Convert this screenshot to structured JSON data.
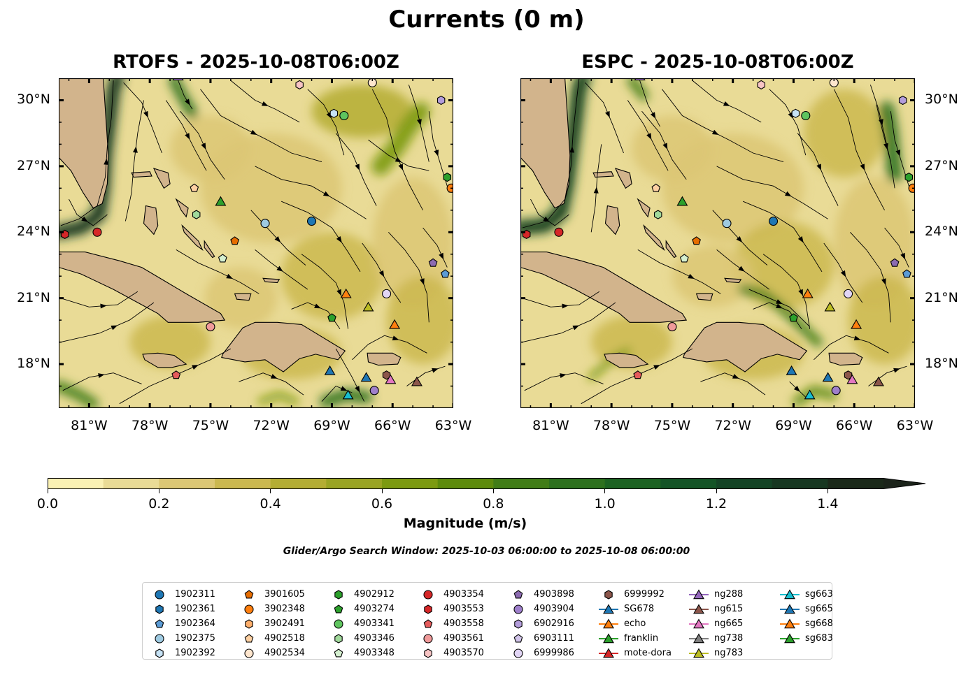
{
  "figure": {
    "title": "Currents (0 m)",
    "window_note": "Glider/Argo Search Window: 2025-10-03 06:00:00 to 2025-10-08 06:00:00"
  },
  "panels": [
    {
      "id": "left",
      "title": "RTOFS - 2025-10-08T06:00Z"
    },
    {
      "id": "right",
      "title": "ESPC - 2025-10-08T06:00Z"
    }
  ],
  "map_extent": {
    "lon": [
      -82.5,
      -63.0
    ],
    "lat": [
      16.0,
      31.0
    ]
  },
  "axes": {
    "x_ticks": [
      {
        "value": -81,
        "label": "81°W"
      },
      {
        "value": -78,
        "label": "78°W"
      },
      {
        "value": -75,
        "label": "75°W"
      },
      {
        "value": -72,
        "label": "72°W"
      },
      {
        "value": -69,
        "label": "69°W"
      },
      {
        "value": -66,
        "label": "66°W"
      },
      {
        "value": -63,
        "label": "63°W"
      }
    ],
    "y_ticks": [
      {
        "value": 30,
        "label": "30°N"
      },
      {
        "value": 27,
        "label": "27°N"
      },
      {
        "value": 24,
        "label": "24°N"
      },
      {
        "value": 21,
        "label": "21°N"
      },
      {
        "value": 18,
        "label": "18°N"
      }
    ]
  },
  "colorbar": {
    "label": "Magnitude (m/s)",
    "range": [
      0.0,
      1.5
    ],
    "extend": "max",
    "ticks": [
      "0.0",
      "0.2",
      "0.4",
      "0.6",
      "0.8",
      "1.0",
      "1.2",
      "1.4"
    ],
    "colors": [
      "#faf1b4",
      "#e9db96",
      "#dcc774",
      "#cbb84f",
      "#b4ad33",
      "#9aa423",
      "#7c9a10",
      "#5d8b0c",
      "#417d17",
      "#2d711e",
      "#1c6322",
      "#145426",
      "#144425",
      "#173721",
      "#1b291a",
      "#1b231a"
    ],
    "land_color": "#d2b48c"
  },
  "legend": {
    "columns": [
      [
        {
          "label": "1902311",
          "marker": "circle",
          "color": "#1f77b4"
        },
        {
          "label": "1902361",
          "marker": "hexagon",
          "color": "#1f77b4"
        },
        {
          "label": "1902364",
          "marker": "pentagon",
          "color": "#5b9bd5"
        },
        {
          "label": "1902375",
          "marker": "circle",
          "color": "#9ecae1"
        },
        {
          "label": "1902392",
          "marker": "hexagon",
          "color": "#c6e2f5"
        }
      ],
      [
        {
          "label": "3901605",
          "marker": "pentagon",
          "color": "#e66d00"
        },
        {
          "label": "3902348",
          "marker": "circle",
          "color": "#ff7f0e"
        },
        {
          "label": "3902491",
          "marker": "hexagon",
          "color": "#fdae6b"
        },
        {
          "label": "4902518",
          "marker": "pentagon",
          "color": "#fdd0a2"
        },
        {
          "label": "4902534",
          "marker": "circle",
          "color": "#fee6ce"
        }
      ],
      [
        {
          "label": "4902912",
          "marker": "hexagon",
          "color": "#2ca02c"
        },
        {
          "label": "4903274",
          "marker": "pentagon",
          "color": "#2ca02c"
        },
        {
          "label": "4903341",
          "marker": "circle",
          "color": "#5fc45f"
        },
        {
          "label": "4903346",
          "marker": "hexagon",
          "color": "#a1d99b"
        },
        {
          "label": "4903348",
          "marker": "pentagon",
          "color": "#d5f0d0"
        }
      ],
      [
        {
          "label": "4903354",
          "marker": "circle",
          "color": "#d62728"
        },
        {
          "label": "4903553",
          "marker": "hexagon",
          "color": "#d62728"
        },
        {
          "label": "4903558",
          "marker": "pentagon",
          "color": "#e55b5b"
        },
        {
          "label": "4903561",
          "marker": "circle",
          "color": "#f09a9a"
        },
        {
          "label": "4903570",
          "marker": "hexagon",
          "color": "#f7c4c4"
        }
      ],
      [
        {
          "label": "4903898",
          "marker": "pentagon",
          "color": "#8c6bb1"
        },
        {
          "label": "4903904",
          "marker": "circle",
          "color": "#9e7fcb"
        },
        {
          "label": "6902916",
          "marker": "hexagon",
          "color": "#b39ddb"
        },
        {
          "label": "6903111",
          "marker": "pentagon",
          "color": "#d1c4e9"
        },
        {
          "label": "6999986",
          "marker": "circle",
          "color": "#e1d5f5"
        }
      ],
      [
        {
          "label": "6999992",
          "marker": "hexagon",
          "color": "#8c564b"
        },
        {
          "label": "SG678",
          "marker": "triangle",
          "color": "#1f77b4"
        },
        {
          "label": "echo",
          "marker": "triangle",
          "color": "#ff7f0e"
        },
        {
          "label": "franklin",
          "marker": "triangle",
          "color": "#2ca02c"
        },
        {
          "label": "mote-dora",
          "marker": "triangle",
          "color": "#d62728"
        }
      ],
      [
        {
          "label": "ng288",
          "marker": "triangle",
          "color": "#9467bd"
        },
        {
          "label": "ng615",
          "marker": "triangle",
          "color": "#8c564b"
        },
        {
          "label": "ng665",
          "marker": "triangle",
          "color": "#e377c2"
        },
        {
          "label": "ng738",
          "marker": "triangle",
          "color": "#7f7f7f"
        },
        {
          "label": "ng783",
          "marker": "triangle",
          "color": "#bcbd22"
        }
      ],
      [
        {
          "label": "sg663",
          "marker": "triangle",
          "color": "#17becf"
        },
        {
          "label": "sg665",
          "marker": "triangle",
          "color": "#1f77b4"
        },
        {
          "label": "sg668",
          "marker": "triangle",
          "color": "#ff7f0e"
        },
        {
          "label": "sg683",
          "marker": "triangle",
          "color": "#2ca02c"
        }
      ]
    ]
  },
  "observations": [
    {
      "id": "1902311",
      "marker": "circle",
      "color": "#1f77b4",
      "lon": -70.0,
      "lat": 24.5
    },
    {
      "id": "1902375",
      "marker": "circle",
      "color": "#9ecae1",
      "lon": -72.3,
      "lat": 24.4
    },
    {
      "id": "1902392",
      "marker": "hexagon",
      "color": "#c6e2f5",
      "lon": -68.9,
      "lat": 29.4
    },
    {
      "id": "1902364",
      "marker": "pentagon",
      "color": "#5b9bd5",
      "lon": -63.4,
      "lat": 22.1
    },
    {
      "id": "3901605",
      "marker": "pentagon",
      "color": "#e66d00",
      "lon": -73.8,
      "lat": 23.6
    },
    {
      "id": "3902348",
      "marker": "circle",
      "color": "#ff7f0e",
      "lon": -63.1,
      "lat": 26.0
    },
    {
      "id": "4902518",
      "marker": "pentagon",
      "color": "#fdd0a2",
      "lon": -75.8,
      "lat": 26.0
    },
    {
      "id": "4902534",
      "marker": "circle",
      "color": "#fee6ce",
      "lon": -67.0,
      "lat": 30.8
    },
    {
      "id": "4902912",
      "marker": "hexagon",
      "color": "#2ca02c",
      "lon": -63.3,
      "lat": 26.5
    },
    {
      "id": "4903274",
      "marker": "pentagon",
      "color": "#2ca02c",
      "lon": -69.0,
      "lat": 20.1
    },
    {
      "id": "4903341",
      "marker": "circle",
      "color": "#5fc45f",
      "lon": -68.4,
      "lat": 29.3
    },
    {
      "id": "4903346",
      "marker": "hexagon",
      "color": "#a1d99b",
      "lon": -75.7,
      "lat": 24.8
    },
    {
      "id": "4903348",
      "marker": "pentagon",
      "color": "#d5f0d0",
      "lon": -74.4,
      "lat": 22.8
    },
    {
      "id": "4903354",
      "marker": "circle",
      "color": "#d62728",
      "lon": -80.6,
      "lat": 24.0
    },
    {
      "id": "4903553",
      "marker": "hexagon",
      "color": "#d62728",
      "lon": -82.2,
      "lat": 23.9
    },
    {
      "id": "4903558",
      "marker": "pentagon",
      "color": "#e55b5b",
      "lon": -76.7,
      "lat": 17.5
    },
    {
      "id": "4903561",
      "marker": "circle",
      "color": "#f09a9a",
      "lon": -75.0,
      "lat": 19.7
    },
    {
      "id": "4903570",
      "marker": "hexagon",
      "color": "#f7c4c4",
      "lon": -70.6,
      "lat": 30.7
    },
    {
      "id": "4903898",
      "marker": "pentagon",
      "color": "#8c6bb1",
      "lon": -64.0,
      "lat": 22.6
    },
    {
      "id": "4903904",
      "marker": "circle",
      "color": "#9e7fcb",
      "lon": -66.9,
      "lat": 16.8
    },
    {
      "id": "6902916",
      "marker": "hexagon",
      "color": "#b39ddb",
      "lon": -63.6,
      "lat": 30.0
    },
    {
      "id": "6999986",
      "marker": "circle",
      "color": "#e1d5f5",
      "lon": -66.3,
      "lat": 21.2
    },
    {
      "id": "6999992",
      "marker": "hexagon",
      "color": "#8c564b",
      "lon": -66.3,
      "lat": 17.5
    },
    {
      "id": "SG678",
      "marker": "triangle",
      "color": "#1f77b4",
      "lon": -69.1,
      "lat": 17.7
    },
    {
      "id": "echo",
      "marker": "triangle",
      "color": "#ff7f0e",
      "lon": -68.3,
      "lat": 21.2
    },
    {
      "id": "franklin",
      "marker": "triangle",
      "color": "#2ca02c",
      "lon": -74.5,
      "lat": 25.4
    },
    {
      "id": "ng288",
      "marker": "triangle",
      "color": "#9467bd",
      "lon": -76.6,
      "lat": 31.1
    },
    {
      "id": "ng615",
      "marker": "triangle",
      "color": "#8c564b",
      "lon": -64.8,
      "lat": 17.2
    },
    {
      "id": "ng665",
      "marker": "triangle",
      "color": "#e377c2",
      "lon": -66.1,
      "lat": 17.3
    },
    {
      "id": "ng783",
      "marker": "triangle",
      "color": "#bcbd22",
      "lon": -67.2,
      "lat": 20.6
    },
    {
      "id": "sg663",
      "marker": "triangle",
      "color": "#17becf",
      "lon": -68.2,
      "lat": 16.6
    },
    {
      "id": "sg665",
      "marker": "triangle",
      "color": "#1f77b4",
      "lon": -67.3,
      "lat": 17.4
    },
    {
      "id": "sg668",
      "marker": "triangle",
      "color": "#ff7f0e",
      "lon": -65.9,
      "lat": 19.8
    }
  ]
}
